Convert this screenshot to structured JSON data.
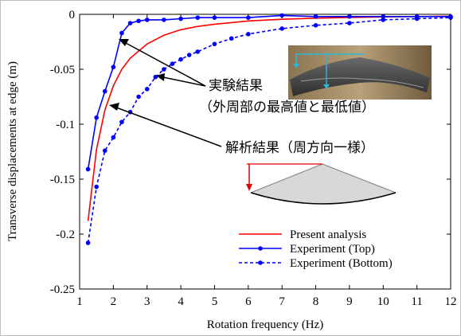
{
  "chart_data": {
    "type": "line",
    "xlabel": "Rotation frequency (Hz)",
    "ylabel": "Transverse displacements at edge (m)",
    "xlim": [
      1,
      12
    ],
    "ylim": [
      -0.25,
      0
    ],
    "xticks": [
      "1",
      "2",
      "3",
      "4",
      "5",
      "6",
      "7",
      "8",
      "9",
      "10",
      "11",
      "12"
    ],
    "yticks": [
      "0",
      "-0.05",
      "-0.1",
      "-0.15",
      "-0.2",
      "-0.25"
    ],
    "grid": false,
    "legend_position": "bottom-right",
    "series": [
      {
        "name": "Present analysis",
        "color": "#ff0000",
        "style": "solid",
        "markers": false,
        "x": [
          1.25,
          1.5,
          1.75,
          2.0,
          2.25,
          2.5,
          3.0,
          3.5,
          4.0,
          4.5,
          5.0,
          5.5,
          6.0,
          7.0,
          8.0,
          9.0,
          10.0,
          11.0,
          12.0
        ],
        "y": [
          -0.188,
          -0.123,
          -0.087,
          -0.065,
          -0.05,
          -0.04,
          -0.027,
          -0.019,
          -0.014,
          -0.011,
          -0.009,
          -0.0075,
          -0.006,
          -0.0045,
          -0.0035,
          -0.0028,
          -0.0023,
          -0.002,
          -0.0017
        ]
      },
      {
        "name": "Experiment (Top)",
        "color": "#0000ff",
        "style": "solid",
        "markers": true,
        "x": [
          1.25,
          1.5,
          1.75,
          2.0,
          2.25,
          2.5,
          2.75,
          3.0,
          3.5,
          4.0,
          4.5,
          5.0,
          6.0,
          7.0,
          8.0,
          9.0,
          10.0,
          11.0,
          12.0
        ],
        "y": [
          -0.141,
          -0.094,
          -0.07,
          -0.048,
          -0.017,
          -0.008,
          -0.006,
          -0.005,
          -0.005,
          -0.004,
          -0.003,
          -0.003,
          -0.003,
          -0.001,
          -0.002,
          -0.002,
          -0.002,
          -0.002,
          -0.002
        ]
      },
      {
        "name": "Experiment (Bottom)",
        "color": "#0000ff",
        "style": "dashed",
        "markers": true,
        "x": [
          1.25,
          1.5,
          1.75,
          2.0,
          2.25,
          2.5,
          2.75,
          3.0,
          3.25,
          3.5,
          3.75,
          4.0,
          4.25,
          4.5,
          5.0,
          5.5,
          6.0,
          7.0,
          8.0,
          9.0,
          10.0,
          11.0,
          12.0
        ],
        "y": [
          -0.208,
          -0.157,
          -0.124,
          -0.112,
          -0.098,
          -0.089,
          -0.075,
          -0.068,
          -0.057,
          -0.05,
          -0.045,
          -0.041,
          -0.037,
          -0.034,
          -0.027,
          -0.022,
          -0.018,
          -0.013,
          -0.01,
          -0.008,
          -0.005,
          -0.004,
          -0.003
        ]
      }
    ],
    "annotations": [
      {
        "line1": "実験結果",
        "line2": "（外周部の最高値と最低値）"
      },
      {
        "line1": "解析結果（周方向一様）"
      }
    ]
  }
}
